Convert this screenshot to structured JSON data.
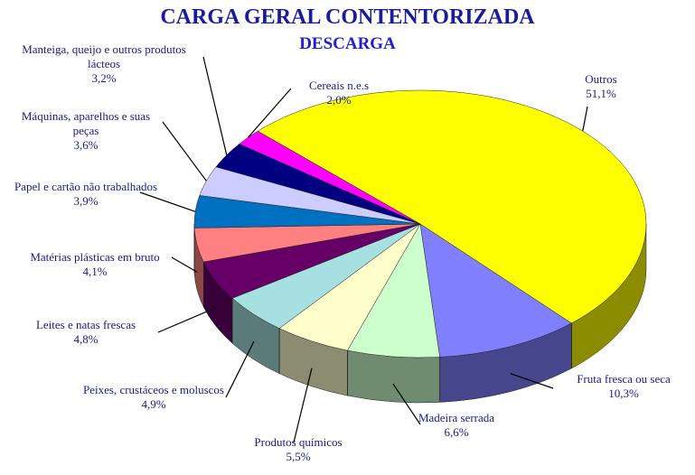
{
  "chart_data": {
    "type": "pie",
    "title": "CARGA GERAL CONTENTORIZADA",
    "subtitle": "DESCARGA",
    "categories": [
      "Outros",
      "Fruta fresca ou seca",
      "Madeira serrada",
      "Produtos químicos",
      "Peixes, crustáceos e moluscos",
      "Leites e natas frescas",
      "Matérias plásticas em bruto",
      "Papel e cartão não trabalhados",
      "Máquinas, aparelhos e suas peças",
      "Manteiga, queijo e outros produtos lácteos",
      "Cereais n.e.s"
    ],
    "values": [
      51.1,
      10.3,
      6.6,
      5.5,
      4.9,
      4.8,
      4.1,
      3.9,
      3.6,
      3.2,
      2.0
    ],
    "value_labels": [
      "51,1%",
      "10,3%",
      "6,6%",
      "5,5%",
      "4,9%",
      "4,8%",
      "4,1%",
      "3,9%",
      "3,6%",
      "3,2%",
      "2,0%"
    ],
    "colors": [
      "#ffff00",
      "#8080ff",
      "#ccffcc",
      "#ffffcc",
      "#a6e0e0",
      "#660066",
      "#ff8080",
      "#0070c0",
      "#ccccff",
      "#000080",
      "#ff00ff"
    ]
  }
}
